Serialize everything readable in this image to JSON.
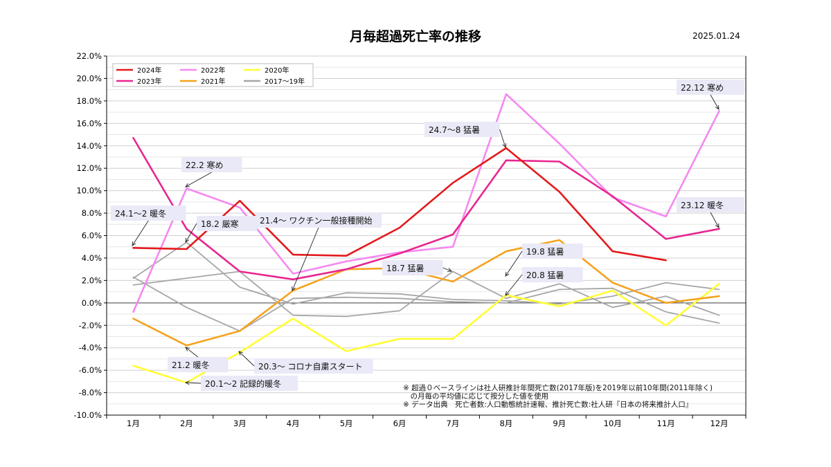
{
  "title": "月毎超過死亡率の推移",
  "date": "2025.01.24",
  "chart_data": {
    "type": "line",
    "title": "月毎超過死亡率の推移",
    "categories": [
      "1月",
      "2月",
      "3月",
      "4月",
      "5月",
      "6月",
      "7月",
      "8月",
      "9月",
      "10月",
      "11月",
      "12月"
    ],
    "ylim": [
      -10,
      22
    ],
    "y_ticks": [
      "22.0%",
      "20.0%",
      "18.0%",
      "16.0%",
      "14.0%",
      "12.0%",
      "10.0%",
      "8.0%",
      "6.0%",
      "4.0%",
      "2.0%",
      "0.0%",
      "-2.0%",
      "-4.0%",
      "-6.0%",
      "-8.0%",
      "-10.0%"
    ],
    "grid": true,
    "legend_position": "top-left",
    "series": [
      {
        "name": "2024年",
        "color": "#e31a1c",
        "values": [
          4.9,
          4.8,
          9.1,
          4.3,
          4.2,
          6.7,
          10.7,
          13.8,
          9.9,
          4.6,
          3.8,
          null
        ]
      },
      {
        "name": "2023年",
        "color": "#e8268f",
        "values": [
          14.7,
          6.6,
          2.8,
          2.1,
          3.0,
          4.4,
          6.1,
          12.7,
          12.6,
          9.5,
          5.7,
          6.6
        ]
      },
      {
        "name": "2022年",
        "color": "#f589f0",
        "values": [
          -0.8,
          10.2,
          8.5,
          2.6,
          3.7,
          4.5,
          5.0,
          18.6,
          14.2,
          9.4,
          7.7,
          17.1
        ]
      },
      {
        "name": "2021年",
        "color": "#f5a21d",
        "values": [
          -1.4,
          -3.8,
          -2.5,
          1.1,
          3.0,
          3.1,
          1.9,
          4.6,
          5.6,
          1.8,
          0.0,
          0.6
        ]
      },
      {
        "name": "2020年",
        "color": "#ffff33",
        "values": [
          -5.6,
          -7.1,
          -4.4,
          -1.4,
          -4.3,
          -3.2,
          -3.2,
          0.7,
          -0.3,
          1.1,
          -2.0,
          1.7
        ]
      },
      {
        "name": "2017～19年",
        "color": "#a6a6a6",
        "values": [
          2.3,
          -0.4,
          -2.5,
          0.4,
          0.5,
          0.4,
          0.1,
          0.0,
          1.2,
          1.3,
          -0.8,
          -1.8
        ]
      }
    ],
    "extra_gray_lines": [
      [
        1.6,
        2.2,
        2.8,
        -1.1,
        -1.2,
        -0.7,
        2.8,
        0.4,
        1.7,
        -0.4,
        0.6,
        -1.1
      ],
      [
        2.2,
        5.4,
        1.4,
        -0.1,
        0.9,
        0.8,
        0.3,
        0.2,
        -0.1,
        0.6,
        1.8,
        1.2
      ]
    ],
    "annotations": [
      {
        "text": "24.1～2 暖冬",
        "x": 0,
        "y": 4.9
      },
      {
        "text": "22.2 寒め",
        "x": 1,
        "y": 10.2
      },
      {
        "text": "18.2 厳寒",
        "x": 1,
        "y": 5.4
      },
      {
        "text": "21.4～ ワクチン一般接種開始",
        "x": 3,
        "y": 1.1
      },
      {
        "text": "24.7～8 猛暑",
        "x": 7,
        "y": 13.8
      },
      {
        "text": "22.12 寒め",
        "x": 11,
        "y": 17.1
      },
      {
        "text": "23.12 暖冬",
        "x": 11,
        "y": 6.6
      },
      {
        "text": "19.8 猛暑",
        "x": 7,
        "y": 2.4
      },
      {
        "text": "18.7 猛暑",
        "x": 6,
        "y": 2.8
      },
      {
        "text": "20.8 猛暑",
        "x": 7,
        "y": 0.7
      },
      {
        "text": "21.2 暖冬",
        "x": 1,
        "y": -3.8
      },
      {
        "text": "20.3～ コロナ自粛スタート",
        "x": 2,
        "y": -4.4
      },
      {
        "text": "20.1～2 記録的暖冬",
        "x": 1,
        "y": -7.1
      }
    ],
    "notes": [
      "※ 超過０ベースラインは社人研推計年間死亡数(2017年版)を2019年以前10年間(2011年除く)",
      "　の月毎の平均値に応じて按分した値を使用",
      "※ データ出典　死亡者数:人口動態統計速報、推計死亡数:社人研『日本の将来推計人口』"
    ]
  }
}
